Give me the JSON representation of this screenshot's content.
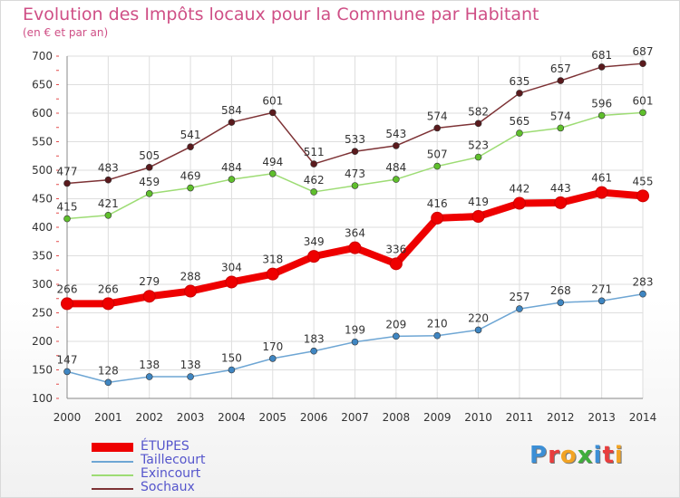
{
  "title": "Evolution des Impôts locaux pour la Commune par Habitant",
  "subtitle": "(en € et par an)",
  "brand": {
    "text": "Proxiti",
    "letters": [
      {
        "ch": "P",
        "color": "#3c8fd6"
      },
      {
        "ch": "r",
        "color": "#e83e3e"
      },
      {
        "ch": "o",
        "color": "#f2a424"
      },
      {
        "ch": "x",
        "color": "#3fae3c"
      },
      {
        "ch": "i",
        "color": "#3c8fd6"
      },
      {
        "ch": "t",
        "color": "#e83e3e"
      },
      {
        "ch": "i",
        "color": "#f2a424"
      }
    ]
  },
  "chart_data": {
    "type": "line",
    "title": "Evolution des Impôts locaux pour la Commune par Habitant",
    "subtitle": "(en € et par an)",
    "x": [
      2000,
      2001,
      2002,
      2003,
      2004,
      2005,
      2006,
      2007,
      2008,
      2009,
      2010,
      2011,
      2012,
      2013,
      2014
    ],
    "ylim": [
      100,
      700
    ],
    "yticks": [
      100,
      150,
      200,
      250,
      300,
      350,
      400,
      450,
      500,
      550,
      600,
      650,
      700
    ],
    "grid": true,
    "legend_position": "bottom-left",
    "series": [
      {
        "name": "ÉTUPES",
        "color": "#ee0000",
        "markerColor": "#ee0000",
        "values": [
          266,
          266,
          279,
          288,
          304,
          318,
          349,
          364,
          336,
          416,
          419,
          442,
          443,
          461,
          455
        ]
      },
      {
        "name": "Taillecourt",
        "color": "#6ea6d4",
        "markerColor": "#3f86c2",
        "values": [
          147,
          128,
          138,
          138,
          150,
          170,
          183,
          199,
          209,
          210,
          220,
          257,
          268,
          271,
          283
        ]
      },
      {
        "name": "Exincourt",
        "color": "#9ddc74",
        "markerColor": "#5fbf2c",
        "values": [
          415,
          421,
          459,
          469,
          484,
          494,
          462,
          473,
          484,
          507,
          523,
          565,
          574,
          596,
          601
        ]
      },
      {
        "name": "Sochaux",
        "color": "#7d3235",
        "markerColor": "#5a1a1d",
        "values": [
          477,
          483,
          505,
          541,
          584,
          601,
          511,
          533,
          543,
          574,
          582,
          635,
          657,
          681,
          687
        ]
      }
    ]
  }
}
